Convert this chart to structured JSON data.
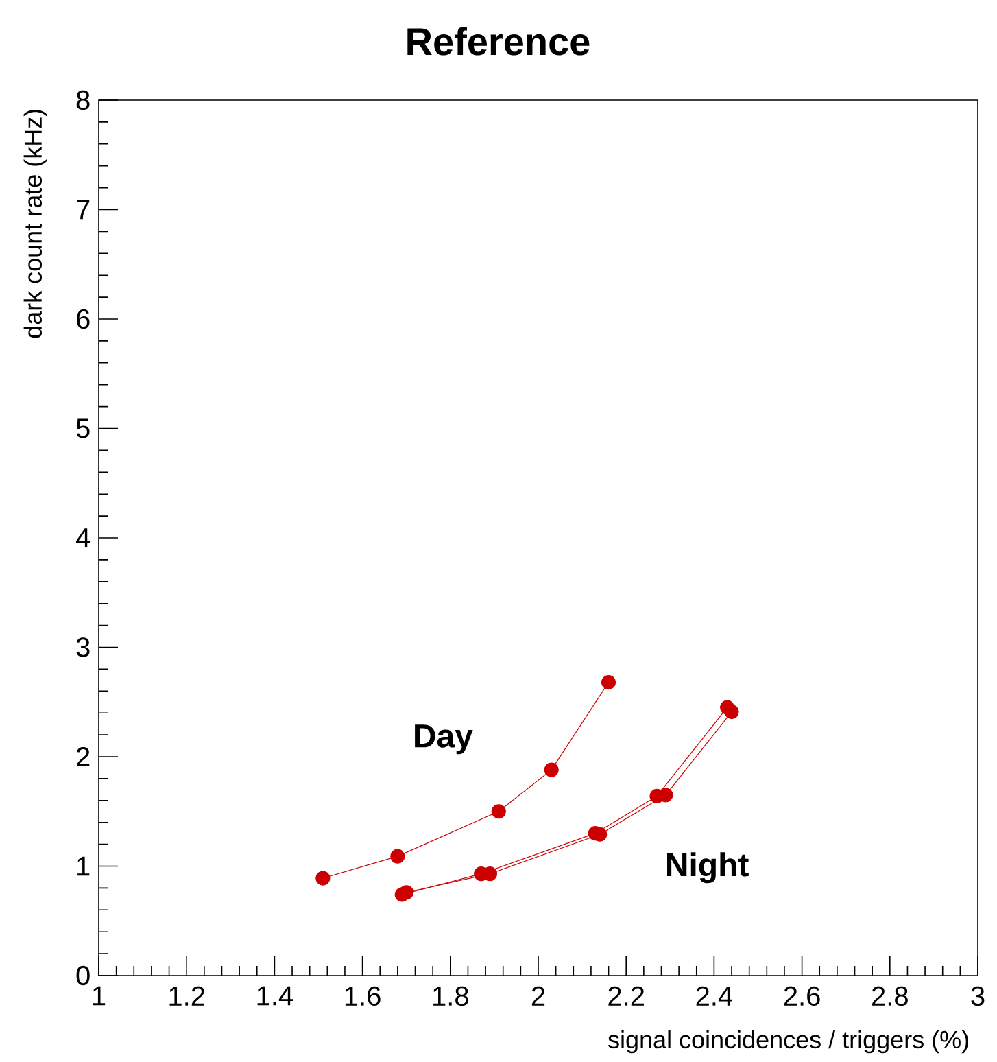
{
  "chart_data": {
    "type": "line",
    "title": "Reference",
    "xlabel": "signal coincidences / triggers (%)",
    "ylabel": "dark count rate (kHz)",
    "xlim": [
      1,
      3
    ],
    "ylim": [
      0,
      8
    ],
    "xticks": [
      1,
      1.2,
      1.4,
      1.6,
      1.8,
      2,
      2.2,
      2.4,
      2.6,
      2.8,
      3
    ],
    "yticks": [
      0,
      1,
      2,
      3,
      4,
      5,
      6,
      7,
      8
    ],
    "marker": "circle",
    "line_style": "solid",
    "series": [
      {
        "name": "Day",
        "color": "#cc0000",
        "x": [
          1.51,
          1.68,
          1.91,
          2.03,
          2.16
        ],
        "values": [
          0.89,
          1.09,
          1.5,
          1.88,
          2.68
        ]
      },
      {
        "name": "Night",
        "color": "#cc0000",
        "x": [
          1.69,
          1.87,
          2.13,
          2.27,
          2.43
        ],
        "values": [
          0.74,
          0.93,
          1.3,
          1.64,
          2.45
        ]
      },
      {
        "color": "#cc0000",
        "x": [
          1.7,
          1.89,
          2.14,
          2.29,
          2.44
        ],
        "values": [
          0.76,
          0.93,
          1.29,
          1.65,
          2.41
        ]
      }
    ]
  }
}
